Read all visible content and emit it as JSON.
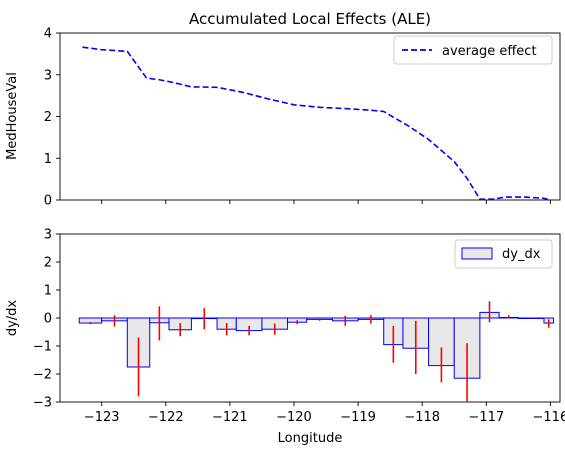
{
  "chart_data": [
    {
      "type": "line",
      "title": "Accumulated Local Effects (ALE)",
      "xlabel": "",
      "ylabel": "MedHouseVal",
      "xlim": [
        -123.65,
        -115.85
      ],
      "ylim": [
        0,
        4
      ],
      "yticks": [
        "0",
        "1",
        "2",
        "3",
        "4"
      ],
      "grid": false,
      "legend_position": "top-right",
      "series": [
        {
          "name": "average effect",
          "color": "#0000ff",
          "style": "dashed",
          "x": [
            -123.3,
            -123.0,
            -122.6,
            -122.3,
            -122.1,
            -121.9,
            -121.6,
            -121.2,
            -120.8,
            -120.4,
            -120.0,
            -119.6,
            -119.2,
            -118.8,
            -118.6,
            -118.2,
            -117.9,
            -117.5,
            -117.3,
            -117.1,
            -116.9,
            -116.7,
            -116.4,
            -116.1,
            -116.0
          ],
          "y": [
            3.66,
            3.6,
            3.56,
            2.92,
            2.88,
            2.82,
            2.71,
            2.7,
            2.58,
            2.42,
            2.28,
            2.22,
            2.19,
            2.15,
            2.12,
            1.76,
            1.45,
            0.92,
            0.52,
            0.02,
            0.02,
            0.07,
            0.07,
            0.04,
            0.0
          ]
        }
      ]
    },
    {
      "type": "bar",
      "title": "",
      "xlabel": "Longitude",
      "ylabel": "dy/dx",
      "xlim": [
        -123.65,
        -115.85
      ],
      "ylim": [
        -3,
        3
      ],
      "xticks": [
        "−123",
        "−122",
        "−121",
        "−120",
        "−119",
        "−118",
        "−117",
        "−116"
      ],
      "yticks": [
        "−3",
        "−2",
        "−1",
        "0",
        "1",
        "2",
        "3"
      ],
      "grid": false,
      "legend_position": "top-right",
      "series": [
        {
          "name": "dy_dx",
          "fill": "#e8e8e8",
          "edge": "#0000ff",
          "error_color": "#ff0000",
          "bars": [
            {
              "x0": -123.35,
              "x1": -123.0,
              "y": -0.18,
              "elo": -0.22,
              "ehi": -0.14
            },
            {
              "x0": -123.0,
              "x1": -122.6,
              "y": -0.1,
              "elo": -0.3,
              "ehi": 0.1
            },
            {
              "x0": -122.6,
              "x1": -122.25,
              "y": -1.75,
              "elo": -2.8,
              "ehi": -0.7
            },
            {
              "x0": -122.25,
              "x1": -121.95,
              "y": -0.17,
              "elo": -0.8,
              "ehi": 0.42
            },
            {
              "x0": -121.95,
              "x1": -121.6,
              "y": -0.42,
              "elo": -0.65,
              "ehi": -0.18
            },
            {
              "x0": -121.6,
              "x1": -121.2,
              "y": -0.02,
              "elo": -0.4,
              "ehi": 0.35
            },
            {
              "x0": -121.2,
              "x1": -120.9,
              "y": -0.4,
              "elo": -0.62,
              "ehi": -0.18
            },
            {
              "x0": -120.9,
              "x1": -120.5,
              "y": -0.45,
              "elo": -0.62,
              "ehi": -0.28
            },
            {
              "x0": -120.5,
              "x1": -120.1,
              "y": -0.4,
              "elo": -0.6,
              "ehi": -0.2
            },
            {
              "x0": -120.1,
              "x1": -119.8,
              "y": -0.15,
              "elo": -0.22,
              "ehi": -0.08
            },
            {
              "x0": -119.8,
              "x1": -119.4,
              "y": -0.05,
              "elo": -0.1,
              "ehi": 0.0
            },
            {
              "x0": -119.4,
              "x1": -119.0,
              "y": -0.1,
              "elo": -0.28,
              "ehi": 0.08
            },
            {
              "x0": -119.0,
              "x1": -118.6,
              "y": -0.05,
              "elo": -0.2,
              "ehi": 0.1
            },
            {
              "x0": -118.6,
              "x1": -118.3,
              "y": -0.95,
              "elo": -1.6,
              "ehi": -0.28
            },
            {
              "x0": -118.3,
              "x1": -117.9,
              "y": -1.08,
              "elo": -2.0,
              "ehi": -0.1
            },
            {
              "x0": -117.9,
              "x1": -117.5,
              "y": -1.7,
              "elo": -2.3,
              "ehi": -1.05
            },
            {
              "x0": -117.5,
              "x1": -117.1,
              "y": -2.15,
              "elo": -3.0,
              "ehi": -0.9
            },
            {
              "x0": -117.1,
              "x1": -116.8,
              "y": 0.2,
              "elo": -0.15,
              "ehi": 0.6
            },
            {
              "x0": -116.8,
              "x1": -116.5,
              "y": 0.02,
              "elo": -0.02,
              "ehi": 0.1
            },
            {
              "x0": -116.5,
              "x1": -116.1,
              "y": 0.0,
              "elo": -0.02,
              "ehi": 0.02
            },
            {
              "x0": -116.1,
              "x1": -115.95,
              "y": -0.18,
              "elo": -0.35,
              "ehi": -0.05
            }
          ]
        }
      ]
    }
  ]
}
